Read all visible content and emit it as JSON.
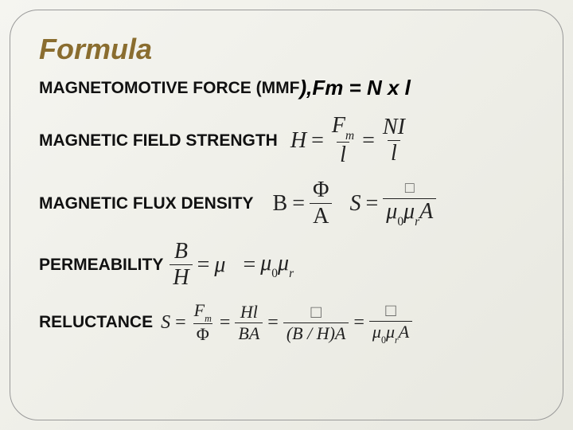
{
  "title": "Formula",
  "rows": {
    "mmf": {
      "label": "MAGNETOMOTIVE FORCE (MMF",
      "paren": "),",
      "eq": " Fm = N x l"
    },
    "h": {
      "label": "MAGNETIC FIELD STRENGTH",
      "H": "H",
      "eq": "=",
      "Fm": "F",
      "m": "m",
      "l": "l",
      "NI": "NI"
    },
    "b": {
      "label": "MAGNETIC FLUX DENSITY",
      "B": "B",
      "eq": "=",
      "Phi": "Φ",
      "A": "A",
      "S": "S",
      "mu0": "μ",
      "zero": "0",
      "mur": "μ",
      "r": "r",
      "Asym": "A",
      "missing": "□"
    },
    "perm": {
      "label": "PERMEABILITY",
      "B": "B",
      "H": "H",
      "eq": "=",
      "mu": "μ",
      "mu0": "μ",
      "zero": "0",
      "mur": "μ",
      "r": "r"
    },
    "rel": {
      "label": "RELUCTANCE",
      "S": "S",
      "eq": "=",
      "Fm": "F",
      "m": "m",
      "Phi": "Φ",
      "Hl": "Hl",
      "BA": "BA",
      "l": "l",
      "BH": "(B / H)A",
      "mu0": "μ",
      "zero": "0",
      "mur": "μ",
      "r": "r",
      "A": "A",
      "missing": "□"
    }
  },
  "colors": {
    "title": "#8a6d2f",
    "text": "#111111",
    "formula": "#222222",
    "bg_light": "#f5f5f0",
    "bg_dark": "#e8e8e0",
    "border": "#999999"
  }
}
